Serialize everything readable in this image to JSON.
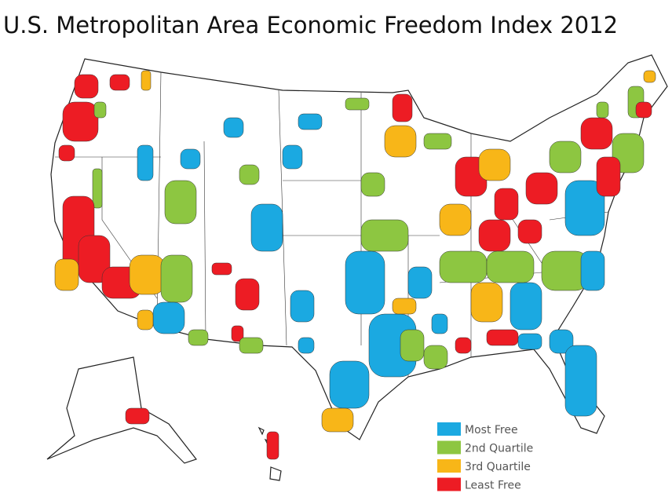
{
  "title": "U.S. Metropolitan Area Economic Freedom Index 2012",
  "legend": [
    {
      "label": "Most Free",
      "color": "#1ba9e1"
    },
    {
      "label": "2nd Quartile",
      "color": "#8dc641"
    },
    {
      "label": "3rd Quartile",
      "color": "#f8b618"
    },
    {
      "label": "Least Free",
      "color": "#ed1c24"
    }
  ]
}
